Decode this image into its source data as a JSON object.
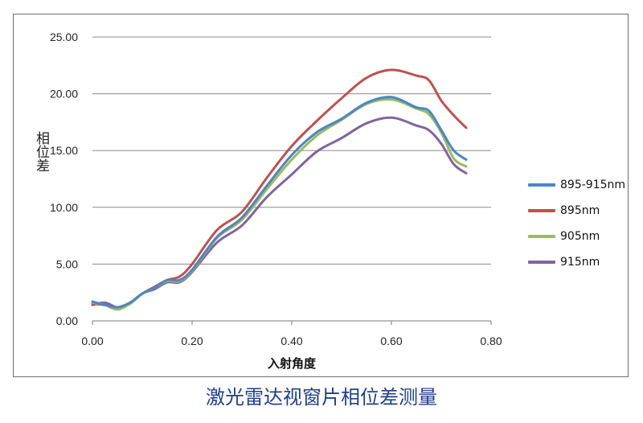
{
  "caption": "激光雷达视窗片相位差测量",
  "chart_data": {
    "type": "line",
    "title": "",
    "xlabel": "入射角度",
    "ylabel": "相位差",
    "xlim": [
      0,
      0.8
    ],
    "ylim": [
      0,
      25
    ],
    "x_ticks": [
      "0.00",
      "0.20",
      "0.40",
      "0.60",
      "0.80"
    ],
    "y_ticks": [
      "0.00",
      "5.00",
      "10.00",
      "15.00",
      "20.00",
      "25.00"
    ],
    "grid": "horizontal",
    "legend_position": "right",
    "x": [
      0.0,
      0.025,
      0.05,
      0.075,
      0.1,
      0.125,
      0.15,
      0.175,
      0.2,
      0.25,
      0.3,
      0.35,
      0.4,
      0.45,
      0.5,
      0.55,
      0.6,
      0.65,
      0.675,
      0.7,
      0.725,
      0.75
    ],
    "series": [
      {
        "name": "895-915nm",
        "color": "#4a86c8",
        "values": [
          1.7,
          1.4,
          1.2,
          1.6,
          2.4,
          2.9,
          3.6,
          3.6,
          4.5,
          7.4,
          9.1,
          11.9,
          14.6,
          16.6,
          17.8,
          19.2,
          19.7,
          18.8,
          18.5,
          16.8,
          15.0,
          14.2
        ]
      },
      {
        "name": "895nm",
        "color": "#c0504d",
        "values": [
          1.5,
          1.4,
          1.2,
          1.5,
          2.4,
          3.0,
          3.6,
          3.9,
          5.0,
          8.0,
          9.6,
          12.6,
          15.4,
          17.6,
          19.6,
          21.4,
          22.1,
          21.6,
          21.2,
          19.4,
          18.1,
          17.0
        ]
      },
      {
        "name": "905nm",
        "color": "#9bbb59",
        "values": [
          1.6,
          1.4,
          1.0,
          1.5,
          2.4,
          2.9,
          3.5,
          3.5,
          4.4,
          7.3,
          8.9,
          11.6,
          14.2,
          16.3,
          17.7,
          19.1,
          19.5,
          18.7,
          18.2,
          16.6,
          14.3,
          13.6
        ]
      },
      {
        "name": "915nm",
        "color": "#8064a2",
        "values": [
          1.4,
          1.6,
          1.2,
          1.5,
          2.4,
          2.8,
          3.4,
          3.4,
          4.3,
          6.9,
          8.4,
          10.9,
          12.9,
          14.9,
          16.1,
          17.4,
          17.9,
          17.2,
          16.8,
          15.6,
          13.8,
          13.0
        ]
      }
    ]
  }
}
